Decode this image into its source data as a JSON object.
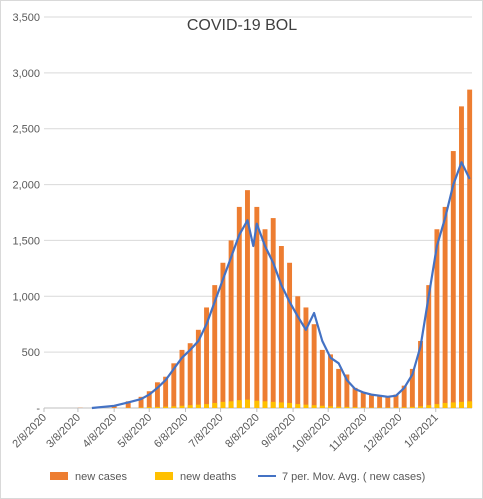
{
  "chart_data": {
    "type": "bar",
    "title": "COVID-19 BOL",
    "ylim": [
      0,
      3500
    ],
    "yticks": [
      0,
      500,
      1000,
      1500,
      2000,
      2500,
      3000,
      3500
    ],
    "ytick_labels": [
      "-",
      "500",
      "1,000",
      "1,500",
      "2,000",
      "2,500",
      "3,000",
      "3,500"
    ],
    "x_start": "2020-02-08",
    "x_end": "2021-02-08",
    "xtick_labels": [
      "2/8/2020",
      "3/8/2020",
      "4/8/2020",
      "5/8/2020",
      "6/8/2020",
      "7/8/2020",
      "8/8/2020",
      "9/8/2020",
      "10/8/2020",
      "11/8/2020",
      "12/8/2020",
      "1/8/2021"
    ],
    "grid": true,
    "legend_position": "bottom",
    "colors": {
      "cases": "#ED7D31",
      "deaths": "#FFC000",
      "avg": "#4472C4"
    },
    "series": [
      {
        "name": "new cases",
        "kind": "bar",
        "x": [
          "2020-03-10",
          "2020-04-08",
          "2020-04-20",
          "2020-05-01",
          "2020-05-08",
          "2020-05-15",
          "2020-05-22",
          "2020-05-29",
          "2020-06-05",
          "2020-06-12",
          "2020-06-19",
          "2020-06-26",
          "2020-07-03",
          "2020-07-10",
          "2020-07-17",
          "2020-07-24",
          "2020-07-31",
          "2020-08-08",
          "2020-08-15",
          "2020-08-22",
          "2020-08-29",
          "2020-09-05",
          "2020-09-12",
          "2020-09-19",
          "2020-09-26",
          "2020-10-03",
          "2020-10-10",
          "2020-10-17",
          "2020-10-24",
          "2020-10-31",
          "2020-11-07",
          "2020-11-14",
          "2020-11-21",
          "2020-11-28",
          "2020-12-05",
          "2020-12-12",
          "2020-12-19",
          "2020-12-26",
          "2021-01-02",
          "2021-01-09",
          "2021-01-16",
          "2021-01-23",
          "2021-01-30",
          "2021-02-06"
        ],
        "values": [
          2,
          20,
          60,
          100,
          150,
          230,
          280,
          400,
          520,
          580,
          700,
          900,
          1100,
          1300,
          1500,
          1800,
          1950,
          1800,
          1600,
          1700,
          1450,
          1300,
          1000,
          900,
          750,
          520,
          480,
          350,
          300,
          180,
          140,
          120,
          110,
          100,
          120,
          200,
          350,
          600,
          1100,
          1600,
          1800,
          2300,
          2700,
          2850
        ]
      },
      {
        "name": "new deaths",
        "kind": "bar",
        "x": [
          "2020-03-10",
          "2020-04-08",
          "2020-04-20",
          "2020-05-01",
          "2020-05-08",
          "2020-05-15",
          "2020-05-22",
          "2020-05-29",
          "2020-06-05",
          "2020-06-12",
          "2020-06-19",
          "2020-06-26",
          "2020-07-03",
          "2020-07-10",
          "2020-07-17",
          "2020-07-24",
          "2020-07-31",
          "2020-08-08",
          "2020-08-15",
          "2020-08-22",
          "2020-08-29",
          "2020-09-05",
          "2020-09-12",
          "2020-09-19",
          "2020-09-26",
          "2020-10-03",
          "2020-10-10",
          "2020-10-17",
          "2020-10-24",
          "2020-10-31",
          "2020-11-07",
          "2020-11-14",
          "2020-11-21",
          "2020-11-28",
          "2020-12-05",
          "2020-12-12",
          "2020-12-19",
          "2020-12-26",
          "2021-01-02",
          "2021-01-09",
          "2021-01-16",
          "2021-01-23",
          "2021-01-30",
          "2021-02-06"
        ],
        "values": [
          0,
          1,
          3,
          5,
          8,
          10,
          12,
          15,
          20,
          25,
          30,
          35,
          45,
          55,
          60,
          70,
          75,
          65,
          60,
          55,
          50,
          45,
          35,
          30,
          25,
          20,
          15,
          12,
          10,
          8,
          5,
          4,
          4,
          4,
          5,
          7,
          10,
          15,
          25,
          35,
          45,
          50,
          55,
          60
        ]
      },
      {
        "name": "7 per. Mov. Avg. ( new cases)",
        "kind": "line",
        "x": [
          "2020-03-20",
          "2020-04-08",
          "2020-04-20",
          "2020-05-01",
          "2020-05-08",
          "2020-05-15",
          "2020-05-22",
          "2020-05-29",
          "2020-06-05",
          "2020-06-12",
          "2020-06-19",
          "2020-06-26",
          "2020-07-03",
          "2020-07-10",
          "2020-07-17",
          "2020-07-24",
          "2020-07-31",
          "2020-08-05",
          "2020-08-08",
          "2020-08-15",
          "2020-08-22",
          "2020-08-29",
          "2020-09-05",
          "2020-09-12",
          "2020-09-19",
          "2020-09-26",
          "2020-10-03",
          "2020-10-10",
          "2020-10-17",
          "2020-10-24",
          "2020-10-31",
          "2020-11-07",
          "2020-11-14",
          "2020-11-21",
          "2020-11-28",
          "2020-12-05",
          "2020-12-12",
          "2020-12-19",
          "2020-12-26",
          "2021-01-02",
          "2021-01-09",
          "2021-01-16",
          "2021-01-23",
          "2021-01-30",
          "2021-02-06"
        ],
        "values": [
          0,
          20,
          50,
          80,
          120,
          180,
          250,
          350,
          450,
          520,
          600,
          750,
          950,
          1150,
          1350,
          1550,
          1680,
          1450,
          1650,
          1450,
          1300,
          1100,
          950,
          820,
          700,
          850,
          600,
          450,
          400,
          250,
          170,
          140,
          120,
          110,
          100,
          110,
          180,
          300,
          550,
          1000,
          1450,
          1700,
          2000,
          2200,
          2050
        ]
      }
    ]
  }
}
